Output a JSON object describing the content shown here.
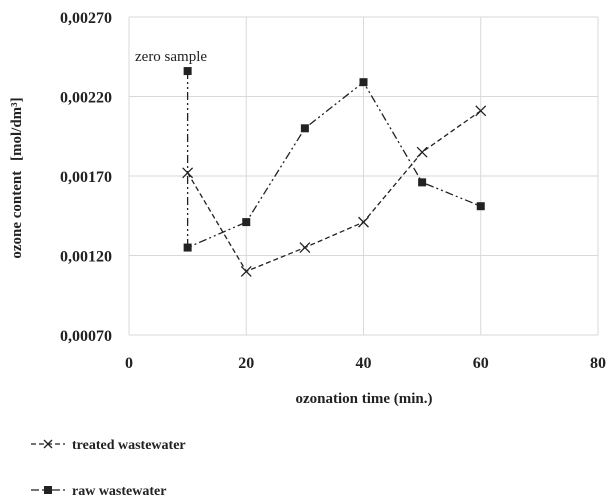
{
  "chart_data": {
    "type": "line",
    "xlabel": "ozonation time (min.)",
    "ylabel": "ozone content",
    "ylabel_unit": "[mol/dm³]",
    "xlim": [
      0,
      80
    ],
    "ylim": [
      0.0007,
      0.0027
    ],
    "x_ticks": [
      0,
      20,
      40,
      60,
      80
    ],
    "x_tick_labels": [
      "0",
      "20",
      "40",
      "60",
      "80"
    ],
    "y_ticks": [
      0.0007,
      0.0012,
      0.0017,
      0.0022,
      0.0027
    ],
    "y_tick_labels": [
      "0,00070",
      "0,00120",
      "0,00170",
      "0,00220",
      "0,00270"
    ],
    "grid": true,
    "legend_position": "bottom-left",
    "annotation": "zero sample",
    "series": [
      {
        "name": "treated wastewater",
        "legend_label": "treated wastewater",
        "marker": "x",
        "line_style": "dashed",
        "color": "#222222",
        "points": [
          [
            10,
            0.00172
          ],
          [
            20,
            0.0011
          ],
          [
            30,
            0.00125
          ],
          [
            40,
            0.00141
          ],
          [
            50,
            0.00185
          ],
          [
            60,
            0.00211
          ]
        ]
      },
      {
        "name": "raw wastewater",
        "legend_label": "raw wastewater",
        "marker": "square",
        "line_style": "dash-dot-dot",
        "color": "#222222",
        "points": [
          [
            10,
            0.00236
          ],
          [
            10,
            0.00125
          ],
          [
            20,
            0.00141
          ],
          [
            30,
            0.002
          ],
          [
            40,
            0.00229
          ],
          [
            50,
            0.00166
          ],
          [
            60,
            0.00151
          ]
        ]
      }
    ]
  }
}
